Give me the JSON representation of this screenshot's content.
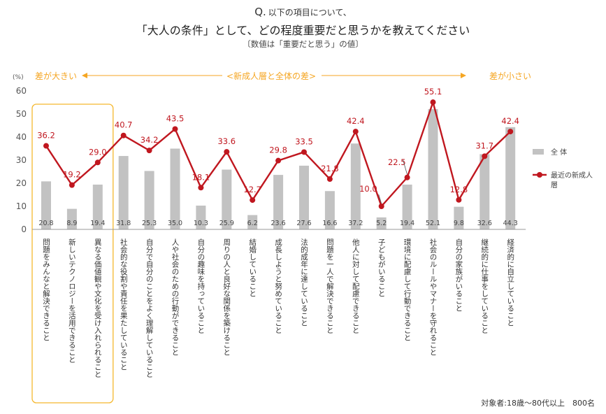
{
  "header": {
    "q_mark": "Q.",
    "question": "以下の項目について、",
    "title": "「大人の条件」として、どの程度重要だと思うかを教えてください",
    "subtitle": "〔数値は「重要だと思う」の値〕"
  },
  "annotations": {
    "unit": "(%)",
    "left": "差が大きい",
    "center": "<新成人層と全体の差>",
    "right": "差が小さい"
  },
  "footnote": "対象者:18歳〜80代以上　800名",
  "colors": {
    "bar": "#c2c2c2",
    "line": "#c0171f",
    "highlight_box": "#f5b82e",
    "annotation": "#f5a623"
  },
  "chart_data": {
    "type": "bar",
    "ylim": [
      0,
      60
    ],
    "yticks": [
      "0",
      "10",
      "20",
      "30",
      "40",
      "50",
      "60"
    ],
    "categories": [
      "問題をみんなと解決できること",
      "新しいテクノロジーを活用できること",
      "異なる価値観や文化を受け入れられること",
      "社会的な役割や責任を果たしていること",
      "自分で自分のことをよく理解していること",
      "人や社会のための行動ができること",
      "自分の趣味を持っていること",
      "周りの人と良好な関係を築けること",
      "結婚していること",
      "成長しようと努めていること",
      "法的成年に達していること",
      "問題を一人で解決できること",
      "他人に対して配慮できること",
      "子どもがいること",
      "環境に配慮して行動できること",
      "社会のルールやマナーを守れること",
      "自分の家族がいること",
      "継続的に仕事をしていること",
      "経済的に自立していること"
    ],
    "series": [
      {
        "name": "全 体",
        "type": "bar",
        "values": [
          20.8,
          8.9,
          19.4,
          31.8,
          25.3,
          35.0,
          10.3,
          25.9,
          6.2,
          23.6,
          27.6,
          16.6,
          37.2,
          5.2,
          19.4,
          52.1,
          9.8,
          32.6,
          44.3
        ]
      },
      {
        "name": "最近の新成人層",
        "type": "line",
        "values": [
          36.2,
          19.2,
          29.0,
          40.7,
          34.2,
          43.5,
          18.1,
          33.6,
          12.7,
          29.8,
          33.5,
          21.8,
          42.4,
          10.0,
          22.5,
          55.1,
          12.8,
          31.7,
          42.4
        ]
      }
    ],
    "highlighted_categories": 3,
    "legend_position": "right"
  }
}
